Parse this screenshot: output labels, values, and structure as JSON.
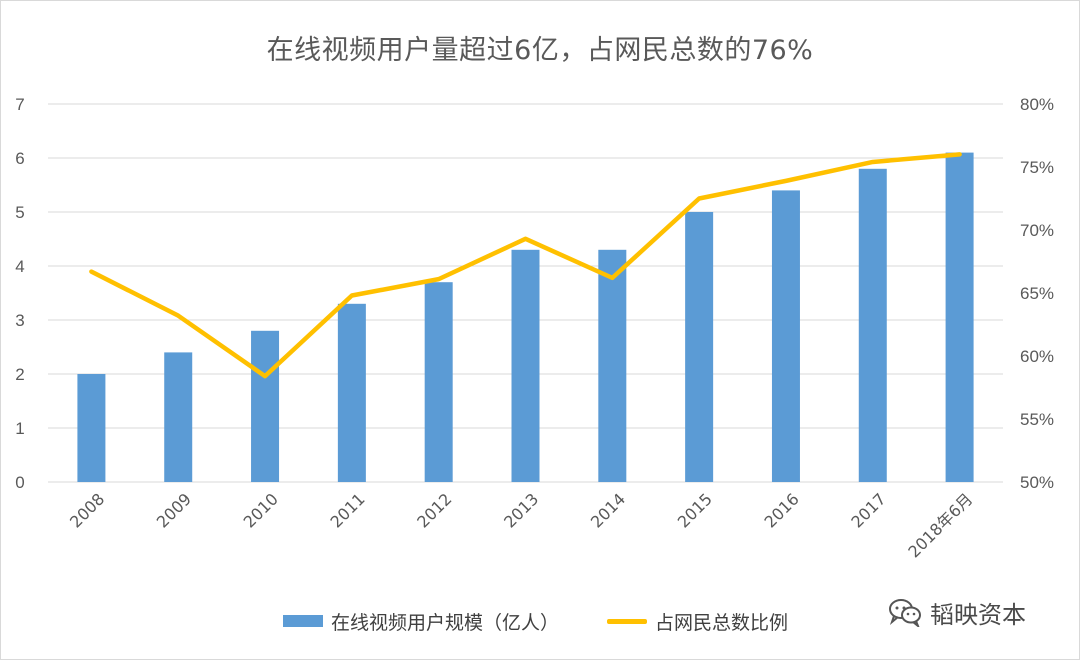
{
  "chart_data": {
    "type": "bar",
    "title": "在线视频用户量超过6亿，占网民总数的76%",
    "categories": [
      "2008",
      "2009",
      "2010",
      "2011",
      "2012",
      "2013",
      "2014",
      "2015",
      "2016",
      "2017",
      "2018年6月"
    ],
    "series": [
      {
        "name": "在线视频用户规模（亿人）",
        "type": "bar",
        "axis": "left",
        "color": "#5b9bd5",
        "values": [
          2.0,
          2.4,
          2.8,
          3.3,
          3.7,
          4.3,
          4.3,
          5.0,
          5.4,
          5.8,
          6.1
        ]
      },
      {
        "name": "占网民总数比例",
        "type": "line",
        "axis": "right",
        "color": "#ffc000",
        "values": [
          66.7,
          63.2,
          58.4,
          64.8,
          66.1,
          69.3,
          66.2,
          72.5,
          73.9,
          75.4,
          76.0
        ]
      }
    ],
    "y_left": {
      "range": [
        0,
        7
      ],
      "ticks": [
        "0",
        "1",
        "2",
        "3",
        "4",
        "5",
        "6",
        "7"
      ]
    },
    "y_right": {
      "range": [
        50,
        80
      ],
      "ticks": [
        "50%",
        "55%",
        "60%",
        "65%",
        "70%",
        "75%",
        "80%"
      ]
    },
    "grid": true,
    "legend_position": "bottom"
  },
  "watermark": {
    "icon": "wechat-icon",
    "text": "韬映资本"
  }
}
